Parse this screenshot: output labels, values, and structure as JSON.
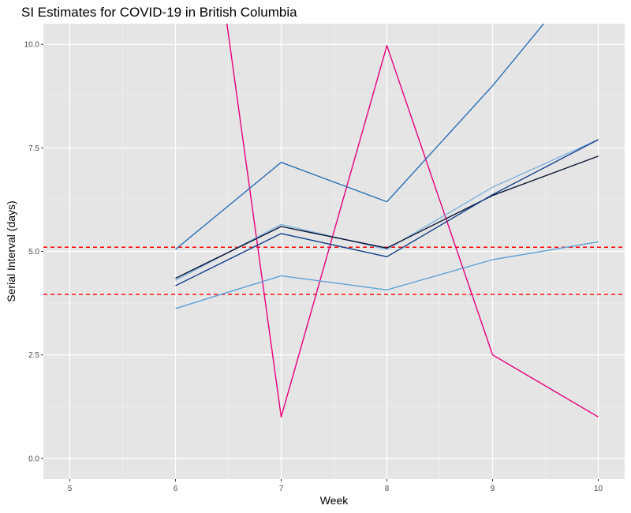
{
  "chart_data": {
    "type": "line",
    "title": "SI Estimates for COVID-19 in British Columbia",
    "xlabel": "Week",
    "ylabel": "Serial Interval (days)",
    "xlim": [
      4.75,
      10.25
    ],
    "ylim": [
      -0.5,
      10.5
    ],
    "x_ticks": [
      "5",
      "6",
      "7",
      "8",
      "9",
      "10"
    ],
    "y_ticks": [
      "0.0",
      "2.5",
      "5.0",
      "7.5",
      "10.0"
    ],
    "grid": true,
    "legend": "none",
    "series": [
      {
        "color": "#e8007d",
        "x": [
          6,
          7,
          8,
          9,
          10
        ],
        "y": [
          19.5,
          1.0,
          9.97,
          2.5,
          1.0
        ]
      },
      {
        "color": "#2c6fb5",
        "x": [
          6,
          7,
          8,
          9,
          10
        ],
        "y": [
          5.05,
          7.15,
          6.2,
          9.0,
          12.1
        ]
      },
      {
        "color": "#7fb2df",
        "x": [
          6,
          7,
          8,
          9,
          10
        ],
        "y": [
          4.3,
          5.65,
          5.05,
          6.55,
          7.7
        ]
      },
      {
        "color": "#0b1633",
        "x": [
          6,
          7,
          8,
          9,
          10
        ],
        "y": [
          4.35,
          5.6,
          5.08,
          6.35,
          7.3
        ]
      },
      {
        "color": "#14418c",
        "x": [
          6,
          7,
          8,
          9,
          10
        ],
        "y": [
          4.17,
          5.43,
          4.87,
          6.37,
          7.7
        ]
      },
      {
        "color": "#5fa0d6",
        "x": [
          6,
          7,
          8,
          9,
          10
        ],
        "y": [
          3.62,
          4.41,
          4.07,
          4.8,
          5.23
        ]
      }
    ],
    "reference_lines": [
      {
        "y": 5.1,
        "color": "#ff0000",
        "style": "dashed"
      },
      {
        "y": 3.96,
        "color": "#ff0000",
        "style": "dashed"
      }
    ]
  }
}
